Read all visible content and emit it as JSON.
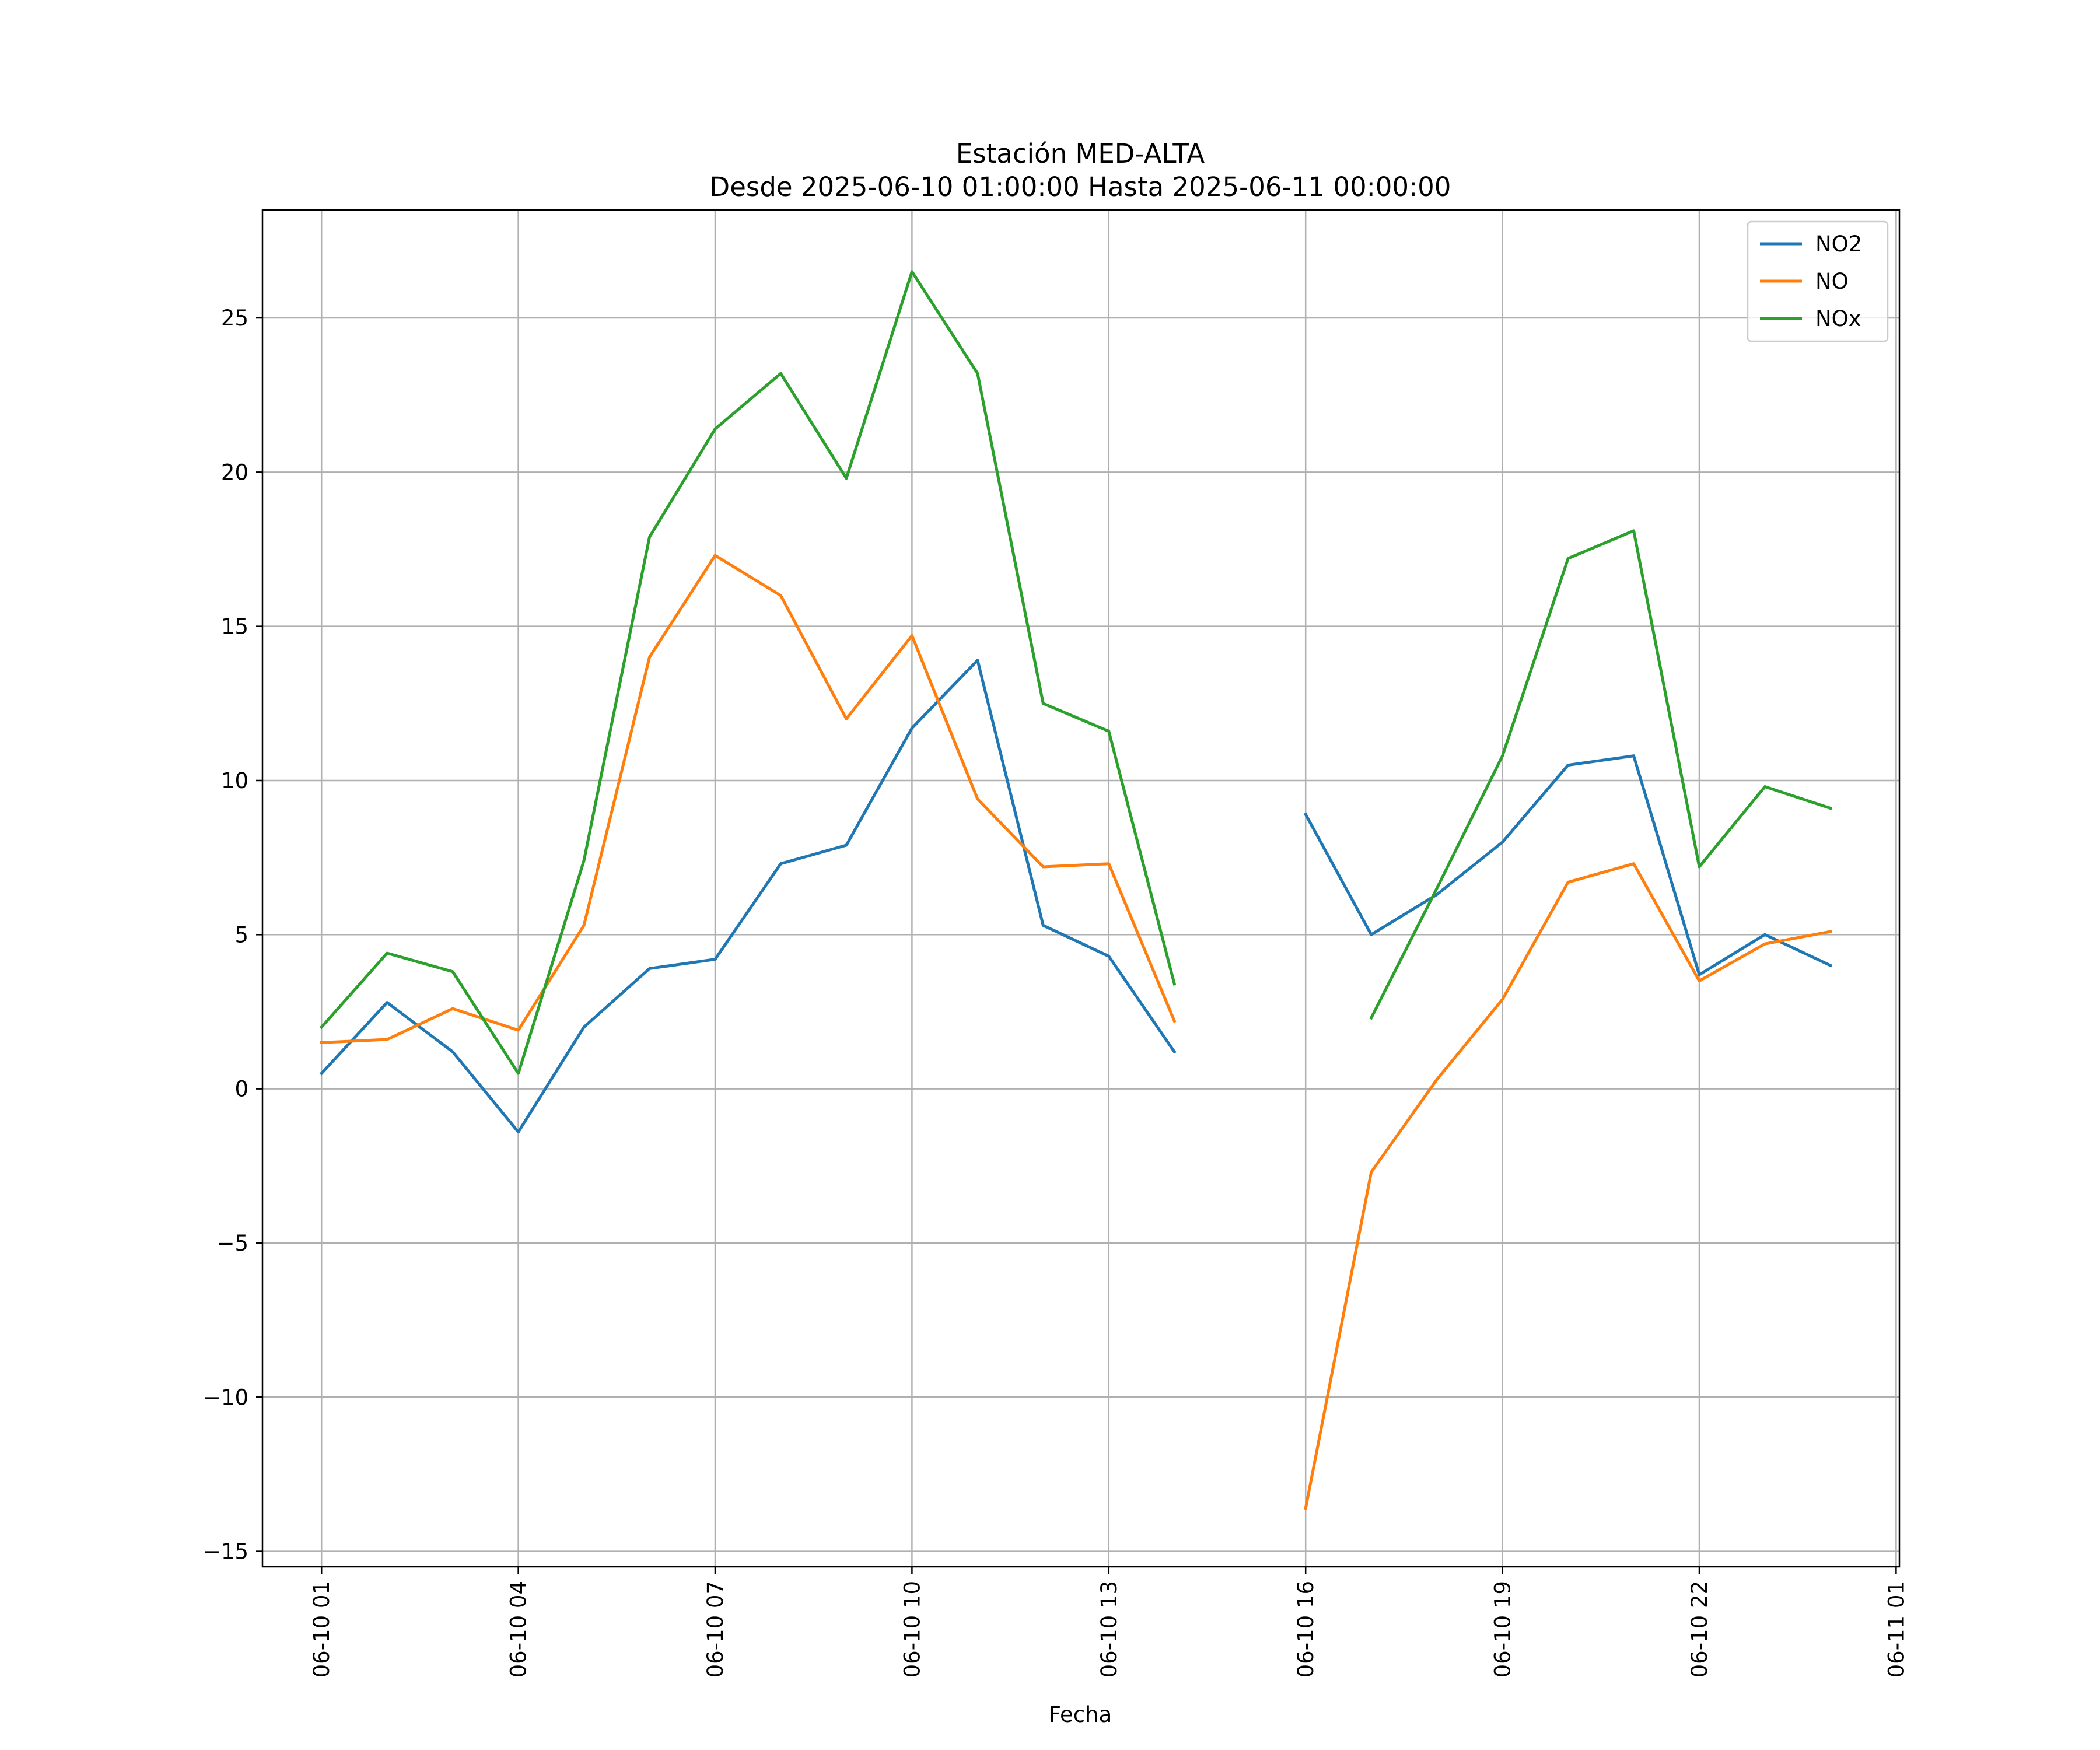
{
  "chart_data": {
    "type": "line",
    "title": "Estación MED-ALTA",
    "subtitle": "Desde 2025-06-10 01:00:00 Hasta 2025-06-11 00:00:00",
    "xlabel": "Fecha",
    "ylabel": "",
    "x": [
      "06-10 01",
      "06-10 02",
      "06-10 03",
      "06-10 04",
      "06-10 05",
      "06-10 06",
      "06-10 07",
      "06-10 08",
      "06-10 09",
      "06-10 10",
      "06-10 11",
      "06-10 12",
      "06-10 13",
      "06-10 14",
      "06-10 15",
      "06-10 16",
      "06-10 17",
      "06-10 18",
      "06-10 19",
      "06-10 20",
      "06-10 21",
      "06-10 22",
      "06-10 23",
      "06-11 00"
    ],
    "xticks": [
      "06-10 01",
      "06-10 04",
      "06-10 07",
      "06-10 10",
      "06-10 13",
      "06-10 16",
      "06-10 19",
      "06-10 22",
      "06-11 01"
    ],
    "yticks": [
      -15,
      -10,
      -5,
      0,
      5,
      10,
      15,
      20,
      25
    ],
    "ytick_labels": [
      "−15",
      "−10",
      "−5",
      "0",
      "5",
      "10",
      "15",
      "20",
      "25"
    ],
    "ylim": [
      -15.5,
      28.5
    ],
    "xlim": [
      "06-10 00:06",
      "06-11 01:03"
    ],
    "grid": true,
    "legend_position": "top-right",
    "series": [
      {
        "name": "NO2",
        "color": "#1f77b4",
        "values": [
          0.5,
          2.8,
          1.2,
          -1.4,
          2.0,
          3.9,
          4.2,
          7.3,
          7.9,
          11.7,
          13.9,
          5.3,
          4.3,
          1.2,
          null,
          8.9,
          5.0,
          6.3,
          8.0,
          10.5,
          10.8,
          3.7,
          5.0,
          4.0
        ]
      },
      {
        "name": "NO",
        "color": "#ff7f0e",
        "values": [
          1.5,
          1.6,
          2.6,
          1.9,
          5.3,
          14.0,
          17.3,
          16.0,
          12.0,
          14.7,
          9.4,
          7.2,
          7.3,
          2.2,
          null,
          -13.6,
          -2.7,
          0.3,
          2.9,
          6.7,
          7.3,
          3.5,
          4.7,
          5.1
        ]
      },
      {
        "name": "NOx",
        "color": "#2ca02c",
        "values": [
          2.0,
          4.4,
          3.8,
          0.5,
          7.4,
          17.9,
          21.4,
          23.2,
          19.8,
          26.5,
          23.2,
          12.5,
          11.6,
          3.4,
          null,
          null,
          2.3,
          6.5,
          10.8,
          17.2,
          18.1,
          7.2,
          9.8,
          9.1
        ]
      }
    ]
  }
}
